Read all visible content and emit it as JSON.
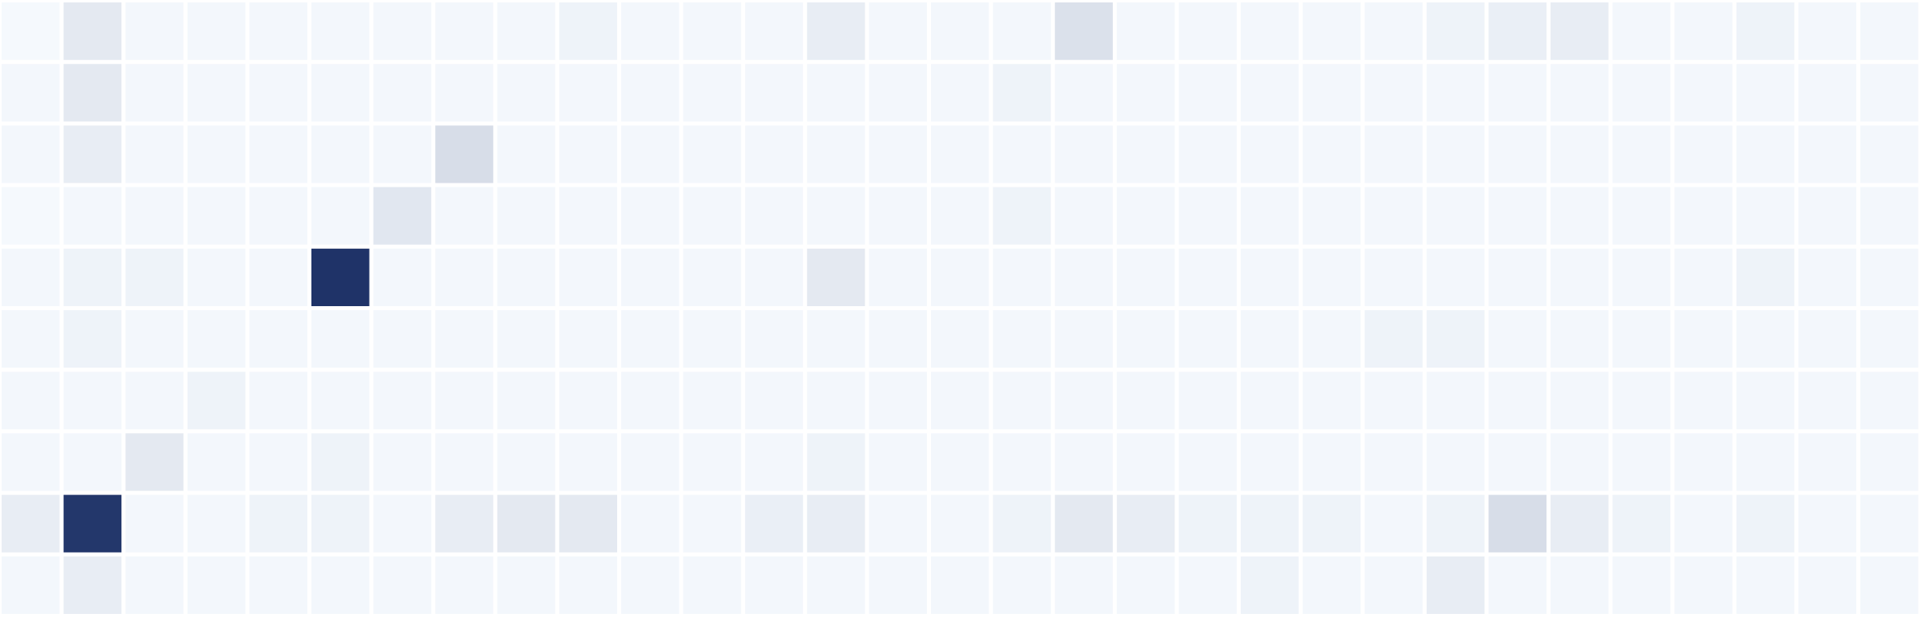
{
  "chart_data": {
    "type": "heatmap",
    "rows": 10,
    "cols": 31,
    "value_range": [
      0,
      1
    ],
    "colors": {
      "background": "#ffffff",
      "low": "#f7fbff",
      "high": "#1f3368"
    },
    "values": [
      [
        0.01,
        0.09,
        0.02,
        0.02,
        0.02,
        0.02,
        0.02,
        0.02,
        0.02,
        0.04,
        0.02,
        0.02,
        0.02,
        0.07,
        0.02,
        0.02,
        0.02,
        0.13,
        0.02,
        0.02,
        0.02,
        0.02,
        0.02,
        0.04,
        0.06,
        0.07,
        0.02,
        0.02,
        0.04,
        0.02,
        0.02
      ],
      [
        0.02,
        0.09,
        0.02,
        0.02,
        0.02,
        0.02,
        0.02,
        0.02,
        0.02,
        0.02,
        0.02,
        0.02,
        0.02,
        0.02,
        0.02,
        0.02,
        0.04,
        0.02,
        0.02,
        0.02,
        0.02,
        0.02,
        0.02,
        0.02,
        0.02,
        0.02,
        0.02,
        0.02,
        0.02,
        0.02,
        0.02
      ],
      [
        0.02,
        0.07,
        0.02,
        0.02,
        0.02,
        0.02,
        0.02,
        0.15,
        0.02,
        0.02,
        0.02,
        0.02,
        0.02,
        0.02,
        0.02,
        0.02,
        0.02,
        0.02,
        0.02,
        0.02,
        0.02,
        0.02,
        0.02,
        0.02,
        0.02,
        0.02,
        0.02,
        0.02,
        0.02,
        0.02,
        0.02
      ],
      [
        0.01,
        0.02,
        0.02,
        0.02,
        0.02,
        0.02,
        0.1,
        0.02,
        0.02,
        0.02,
        0.02,
        0.02,
        0.02,
        0.02,
        0.02,
        0.02,
        0.04,
        0.02,
        0.02,
        0.02,
        0.02,
        0.02,
        0.02,
        0.02,
        0.02,
        0.02,
        0.02,
        0.02,
        0.02,
        0.02,
        0.02
      ],
      [
        0.02,
        0.04,
        0.04,
        0.02,
        0.02,
        1.0,
        0.02,
        0.02,
        0.02,
        0.02,
        0.02,
        0.02,
        0.02,
        0.09,
        0.02,
        0.02,
        0.02,
        0.02,
        0.02,
        0.02,
        0.02,
        0.02,
        0.02,
        0.02,
        0.02,
        0.02,
        0.02,
        0.02,
        0.04,
        0.02,
        0.02
      ],
      [
        0.02,
        0.04,
        0.02,
        0.02,
        0.02,
        0.02,
        0.02,
        0.02,
        0.02,
        0.02,
        0.02,
        0.02,
        0.02,
        0.02,
        0.02,
        0.02,
        0.02,
        0.02,
        0.02,
        0.02,
        0.02,
        0.02,
        0.04,
        0.04,
        0.02,
        0.02,
        0.02,
        0.02,
        0.02,
        0.02,
        0.02
      ],
      [
        0.02,
        0.02,
        0.02,
        0.04,
        0.02,
        0.02,
        0.02,
        0.02,
        0.02,
        0.02,
        0.02,
        0.02,
        0.02,
        0.02,
        0.02,
        0.02,
        0.02,
        0.02,
        0.02,
        0.02,
        0.02,
        0.02,
        0.02,
        0.02,
        0.02,
        0.02,
        0.02,
        0.02,
        0.02,
        0.02,
        0.02
      ],
      [
        0.02,
        0.02,
        0.09,
        0.02,
        0.02,
        0.04,
        0.02,
        0.02,
        0.02,
        0.02,
        0.02,
        0.02,
        0.02,
        0.04,
        0.02,
        0.02,
        0.02,
        0.02,
        0.02,
        0.02,
        0.02,
        0.02,
        0.02,
        0.02,
        0.02,
        0.02,
        0.02,
        0.02,
        0.02,
        0.02,
        0.02
      ],
      [
        0.07,
        0.98,
        0.02,
        0.02,
        0.04,
        0.04,
        0.02,
        0.07,
        0.09,
        0.09,
        0.02,
        0.02,
        0.06,
        0.07,
        0.02,
        0.02,
        0.04,
        0.09,
        0.07,
        0.04,
        0.04,
        0.04,
        0.02,
        0.04,
        0.15,
        0.07,
        0.04,
        0.02,
        0.04,
        0.02,
        0.02
      ],
      [
        0.02,
        0.07,
        0.02,
        0.02,
        0.02,
        0.02,
        0.02,
        0.02,
        0.02,
        0.02,
        0.02,
        0.02,
        0.02,
        0.02,
        0.02,
        0.02,
        0.02,
        0.02,
        0.02,
        0.02,
        0.04,
        0.02,
        0.02,
        0.07,
        0.02,
        0.02,
        0.02,
        0.02,
        0.02,
        0.02,
        0.02
      ]
    ]
  }
}
